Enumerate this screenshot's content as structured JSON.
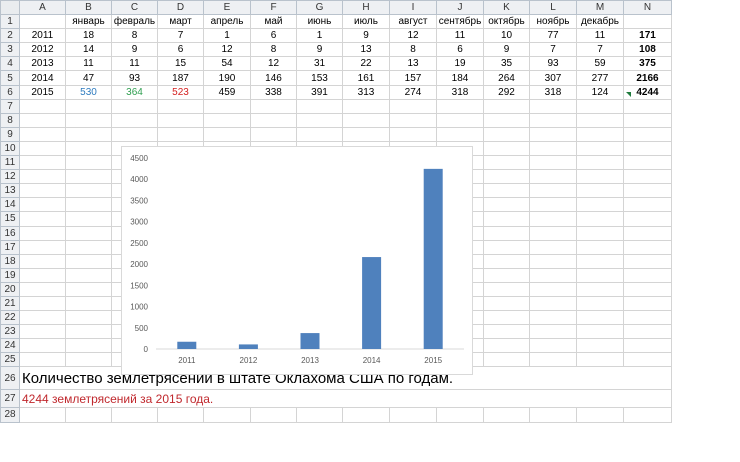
{
  "spreadsheet": {
    "col_headers": [
      "A",
      "B",
      "C",
      "D",
      "E",
      "F",
      "G",
      "H",
      "I",
      "J",
      "K",
      "L",
      "M",
      "N"
    ],
    "row_numbers": [
      "1",
      "2",
      "3",
      "4",
      "5",
      "6",
      "7",
      "8",
      "9",
      "10",
      "11",
      "12",
      "13",
      "14",
      "15",
      "16",
      "17",
      "18",
      "19",
      "20",
      "21",
      "22",
      "23",
      "24",
      "25",
      "26",
      "27",
      "28"
    ],
    "months": [
      "январь",
      "февраль",
      "март",
      "апрель",
      "май",
      "июнь",
      "июль",
      "август",
      "сентябрь",
      "октябрь",
      "ноябрь",
      "декабрь"
    ],
    "rows": [
      {
        "year": "2011",
        "values": [
          "18",
          "8",
          "7",
          "1",
          "6",
          "1",
          "9",
          "12",
          "11",
          "10",
          "77",
          "11"
        ],
        "total": "171"
      },
      {
        "year": "2012",
        "values": [
          "14",
          "9",
          "6",
          "12",
          "8",
          "9",
          "13",
          "8",
          "6",
          "9",
          "7",
          "7"
        ],
        "total": "108"
      },
      {
        "year": "2013",
        "values": [
          "11",
          "11",
          "15",
          "54",
          "12",
          "31",
          "22",
          "13",
          "19",
          "35",
          "93",
          "59"
        ],
        "total": "375"
      },
      {
        "year": "2014",
        "values": [
          "47",
          "93",
          "187",
          "190",
          "146",
          "153",
          "161",
          "157",
          "184",
          "264",
          "307",
          "277"
        ],
        "total": "2166"
      },
      {
        "year": "2015",
        "values": [
          "530",
          "364",
          "523",
          "459",
          "338",
          "391",
          "313",
          "274",
          "318",
          "292",
          "318",
          "124"
        ],
        "total": "4244"
      }
    ],
    "highlight_colors": {
      "jan": "#2e7bbf",
      "feb": "#2e9e4f",
      "mar": "#d42121"
    },
    "caption": "Количество землетрясений в штате Оклахома США по годам.",
    "note": "4244 землетрясений за 2015 года.",
    "note_color": "#c0282d"
  },
  "chart_data": {
    "type": "bar",
    "categories": [
      "2011",
      "2012",
      "2013",
      "2014",
      "2015"
    ],
    "values": [
      171,
      108,
      375,
      2166,
      4244
    ],
    "ylim": [
      0,
      4500
    ],
    "yticks": [
      "0",
      "500",
      "1000",
      "1500",
      "2000",
      "2500",
      "3000",
      "3500",
      "4000",
      "4500"
    ],
    "bar_color": "#4f81bd",
    "grid": false,
    "legend": "none"
  }
}
